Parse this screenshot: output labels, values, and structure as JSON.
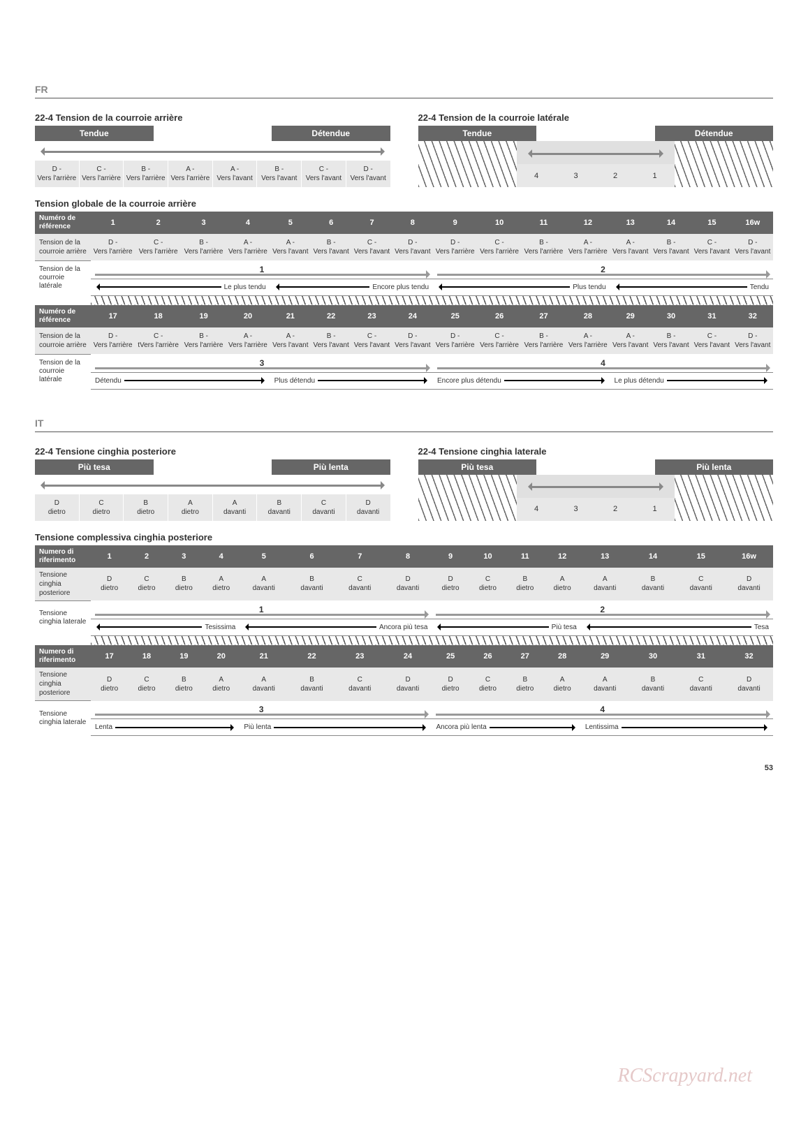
{
  "page_number": "53",
  "watermark": "RCScrapyard.net",
  "blocks": [
    {
      "lang": "FR",
      "rear_title": "22-4 Tension de la courroie arrière",
      "lateral_title": "22-4 Tension de la courroie latérale",
      "tight": "Tendue",
      "loose": "Détendue",
      "rear_cells": [
        "D - Vers l'arrière",
        "C - Vers l'arrière",
        "B - Vers l'arrière",
        "A - Vers l'arrière",
        "A - Vers l'avant",
        "B - Vers l'avant",
        "C - Vers l'avant",
        "D - Vers l'avant"
      ],
      "lateral_nums": [
        "4",
        "3",
        "2",
        "1"
      ],
      "global_title": "Tension globale de la courroie arrière",
      "ref_label": "Numéro de référence",
      "row_rear_label": "Tension de la courroie arrière",
      "row_lat_label": "Tension de la courroie latérale",
      "refs1": [
        "1",
        "2",
        "3",
        "4",
        "5",
        "6",
        "7",
        "8",
        "9",
        "10",
        "11",
        "12",
        "13",
        "14",
        "15",
        "16w"
      ],
      "cells1": [
        "D - Vers l'arrière",
        "C - Vers l'arrière",
        "B - Vers l'arrière",
        "A - Vers l'arrière",
        "A - Vers l'avant",
        "B - Vers l'avant",
        "C - Vers l'avant",
        "D - Vers l'avant",
        "D - Vers l'arrière",
        "C - Vers l'arrière",
        "B - Vers l'arrière",
        "A - Vers l'arrière",
        "A - Vers l'avant",
        "B - Vers l'avant",
        "C - Vers l'avant",
        "D - Vers l'avant"
      ],
      "lat_nums1": [
        "1",
        "2"
      ],
      "lat_texts1": [
        "Le plus tendu",
        "Encore plus tendu",
        "Plus tendu",
        "Tendu"
      ],
      "lat_left1": true,
      "refs2": [
        "17",
        "18",
        "19",
        "20",
        "21",
        "22",
        "23",
        "24",
        "25",
        "26",
        "27",
        "28",
        "29",
        "30",
        "31",
        "32"
      ],
      "cells2": [
        "D - Vers l'arrière",
        "C - tVers l'arrière",
        "B - Vers l'arrière",
        "A - Vers l'arrière",
        "A - Vers l'avant",
        "B - Vers l'avant",
        "C - Vers l'avant",
        "D - Vers l'avant",
        "D - Vers l'arrière",
        "C - Vers l'arrière",
        "B - Vers l'arrière",
        "A - Vers l'arrière",
        "A - Vers l'avant",
        "B - Vers l'avant",
        "C - Vers l'avant",
        "D - Vers l'avant"
      ],
      "lat_nums2": [
        "3",
        "4"
      ],
      "lat_texts2": [
        "Détendu",
        "Plus détendu",
        "Encore plus détendu",
        "Le plus détendu"
      ],
      "lat_left2": false
    },
    {
      "lang": "IT",
      "rear_title": "22-4 Tensione cinghia posteriore",
      "lateral_title": "22-4 Tensione cinghia laterale",
      "tight": "Più tesa",
      "loose": "Più lenta",
      "rear_cells": [
        "D dietro",
        "C dietro",
        "B dietro",
        "A dietro",
        "A davanti",
        "B davanti",
        "C davanti",
        "D davanti"
      ],
      "lateral_nums": [
        "4",
        "3",
        "2",
        "1"
      ],
      "global_title": "Tensione complessiva cinghia posteriore",
      "ref_label": "Numero di riferimento",
      "row_rear_label": "Tensione cinghia posteriore",
      "row_lat_label": "Tensione cinghia laterale",
      "refs1": [
        "1",
        "2",
        "3",
        "4",
        "5",
        "6",
        "7",
        "8",
        "9",
        "10",
        "11",
        "12",
        "13",
        "14",
        "15",
        "16w"
      ],
      "cells1": [
        "D dietro",
        "C dietro",
        "B dietro",
        "A dietro",
        "A davanti",
        "B davanti",
        "C davanti",
        "D davanti",
        "D dietro",
        "C dietro",
        "B dietro",
        "A dietro",
        "A davanti",
        "B davanti",
        "C davanti",
        "D davanti"
      ],
      "lat_nums1": [
        "1",
        "2"
      ],
      "lat_texts1": [
        "Tesissima",
        "Ancora più tesa",
        "Più tesa",
        "Tesa"
      ],
      "lat_left1": true,
      "refs2": [
        "17",
        "18",
        "19",
        "20",
        "21",
        "22",
        "23",
        "24",
        "25",
        "26",
        "27",
        "28",
        "29",
        "30",
        "31",
        "32"
      ],
      "cells2": [
        "D dietro",
        "C dietro",
        "B dietro",
        "A dietro",
        "A davanti",
        "B davanti",
        "C davanti",
        "D davanti",
        "D dietro",
        "C dietro",
        "B dietro",
        "A dietro",
        "A davanti",
        "B davanti",
        "C davanti",
        "D davanti"
      ],
      "lat_nums2": [
        "3",
        "4"
      ],
      "lat_texts2": [
        "Lenta",
        "Più lenta",
        "Ancora più lenta",
        "Lentissima"
      ],
      "lat_left2": false
    }
  ]
}
